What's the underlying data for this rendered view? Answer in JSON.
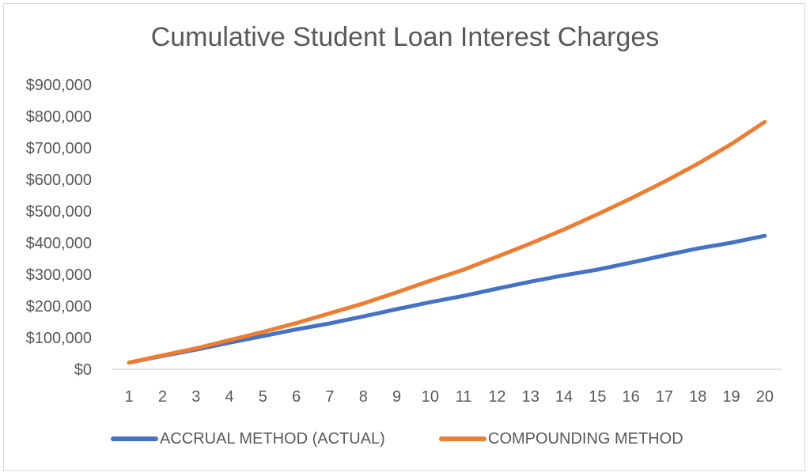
{
  "chart_data": {
    "type": "line",
    "title": "Cumulative Student Loan Interest Charges",
    "xlabel": "",
    "ylabel": "",
    "x": [
      1,
      2,
      3,
      4,
      5,
      6,
      7,
      8,
      9,
      10,
      11,
      12,
      13,
      14,
      15,
      16,
      17,
      18,
      19,
      20
    ],
    "ylim": [
      0,
      900000
    ],
    "yticks": [
      "$0",
      "$100,000",
      "$200,000",
      "$300,000",
      "$400,000",
      "$500,000",
      "$600,000",
      "$700,000",
      "$800,000",
      "$900,000"
    ],
    "grid": false,
    "legend_position": "bottom",
    "series": [
      {
        "name": "ACCRUAL METHOD (ACTUAL)",
        "color": "#4472C4",
        "values": [
          21000,
          42000,
          62000,
          84000,
          105000,
          126000,
          145000,
          167000,
          190000,
          212000,
          232000,
          255000,
          277000,
          297000,
          315000,
          337000,
          360000,
          382000,
          400000,
          422000
        ]
      },
      {
        "name": "COMPOUNDING METHOD",
        "color": "#ED7D31",
        "values": [
          21000,
          44000,
          66000,
          92000,
          118000,
          146000,
          177000,
          208000,
          243000,
          280000,
          315000,
          356000,
          398000,
          442000,
          490000,
          540000,
          593000,
          650000,
          712000,
          782000
        ]
      }
    ]
  }
}
